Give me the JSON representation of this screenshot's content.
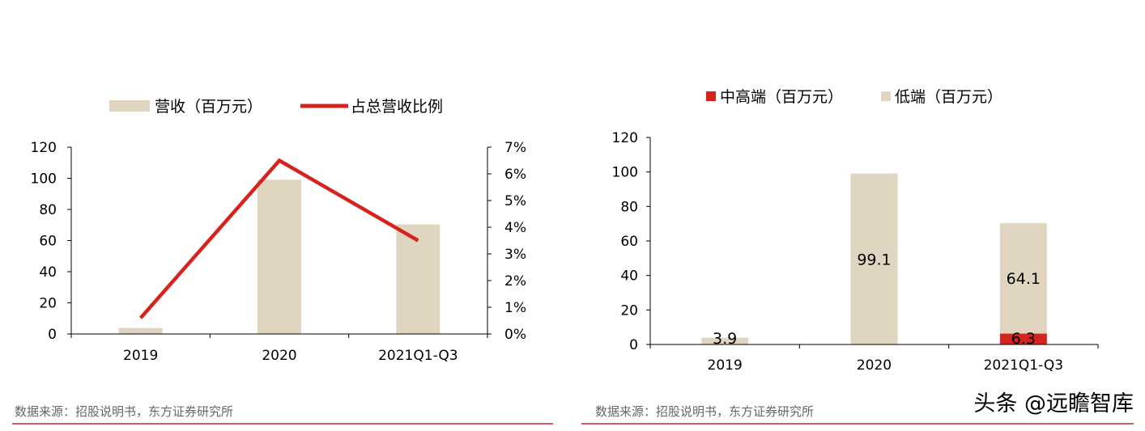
{
  "colors": {
    "beige": "#DFD5C0",
    "red": "#D7231E",
    "source_gray": "#666666",
    "rule_red": "#C0282E"
  },
  "left": {
    "legend": {
      "bar": "营收（百万元）",
      "line": "占总营收比例"
    },
    "source": "数据来源：招股说明书，东方证券研究所"
  },
  "right": {
    "legend": {
      "high": "中高端（百万元）",
      "low": "低端（百万元）"
    },
    "source": "数据来源：招股说明书，东方证券研究所"
  },
  "watermark": "头条 @远瞻智库",
  "chart_data": [
    {
      "type": "bar",
      "categories": [
        "2019",
        "2020",
        "2021Q1-Q3"
      ],
      "series": [
        {
          "name": "营收（百万元）",
          "type": "bar",
          "axis": "left",
          "values": [
            3.9,
            99.1,
            70.4
          ]
        },
        {
          "name": "占总营收比例",
          "type": "line",
          "axis": "right",
          "values": [
            0.6,
            6.5,
            3.5
          ]
        }
      ],
      "ylim": [
        0,
        120
      ],
      "yticks": [
        "0",
        "20",
        "40",
        "60",
        "80",
        "100",
        "120"
      ],
      "y2lim": [
        0,
        7
      ],
      "y2ticks": [
        "0%",
        "1%",
        "2%",
        "3%",
        "4%",
        "5%",
        "6%",
        "7%"
      ],
      "legend_position": "top",
      "grid": false
    },
    {
      "type": "bar",
      "stacked": true,
      "categories": [
        "2019",
        "2020",
        "2021Q1-Q3"
      ],
      "series": [
        {
          "name": "中高端（百万元）",
          "values": [
            0,
            0,
            6.3
          ],
          "labels": [
            "",
            "",
            "6.3"
          ]
        },
        {
          "name": "低端（百万元）",
          "values": [
            3.9,
            99.1,
            64.1
          ],
          "labels": [
            "3.9",
            "99.1",
            "64.1"
          ]
        }
      ],
      "ylim": [
        0,
        120
      ],
      "yticks": [
        "0",
        "20",
        "40",
        "60",
        "80",
        "100",
        "120"
      ],
      "legend_position": "top",
      "grid": false
    }
  ]
}
